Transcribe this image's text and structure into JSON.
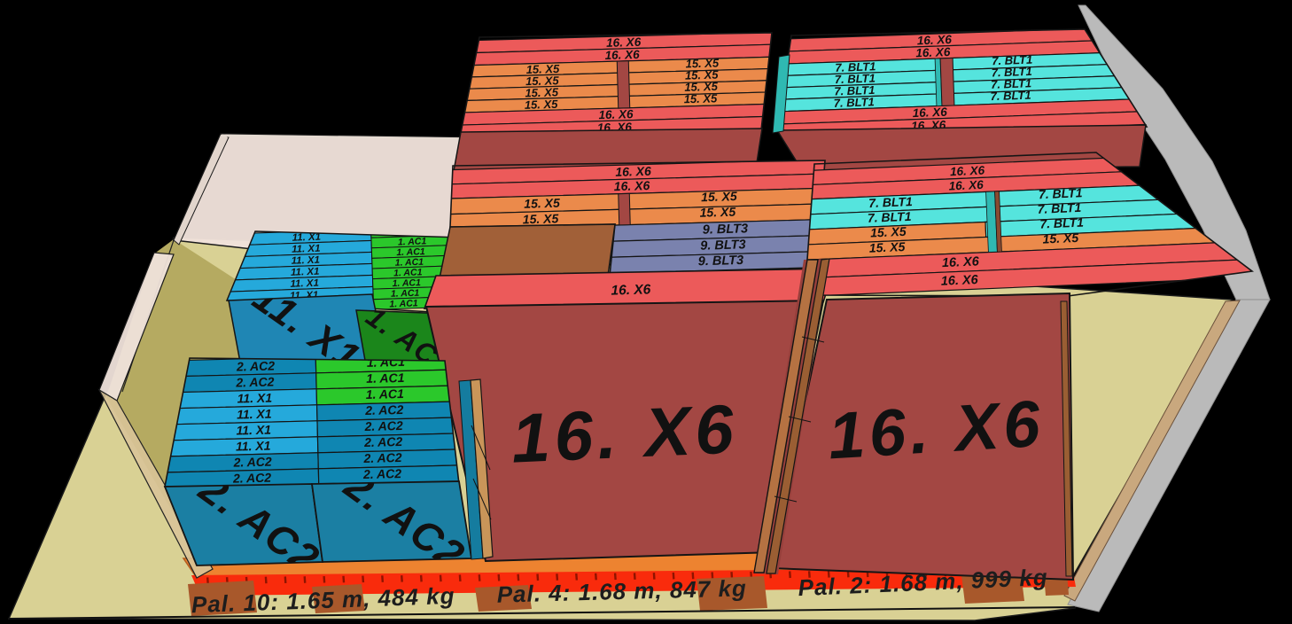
{
  "view": {
    "type": "3d-load-plan",
    "description_visible_objects": "truck bed with stacked labeled boxes on pallets"
  },
  "stacks": {
    "back_left": {
      "top_rows": [
        "16. X6",
        "16. X6",
        "15. X5",
        "15. X5",
        "15. X5",
        "15. X5",
        "16. X6",
        "16. X6"
      ]
    },
    "back_right": {
      "top_rows": [
        "16. X6",
        "16. X6",
        "7. BLT1",
        "7. BLT1",
        "7. BLT1",
        "7. BLT1",
        "16. X6",
        "16. X6"
      ]
    },
    "mid_left": {
      "top_rows": [
        "16. X6",
        "16. X6",
        "15. X5",
        "15. X5"
      ],
      "right_col_rows": [
        "9. BLT3",
        "9. BLT3",
        "9. BLT3"
      ],
      "box_top_row": "16. X6",
      "front_text": "16. X6"
    },
    "mid_right": {
      "left_col_rows": [
        "16. X6",
        "16. X6",
        "7. BLT1",
        "7. BLT1",
        "15. X5",
        "15. X5",
        "16. X6",
        "16. X6"
      ],
      "right_col_rows": [
        "7. BLT1",
        "7. BLT1",
        "7. BLT1",
        "15. X5"
      ],
      "front_text": "16. X6"
    },
    "left_back": {
      "left_col_rows": [
        "11. X1",
        "11. X1",
        "11. X1",
        "11. X1",
        "11. X1",
        "11. X1"
      ],
      "right_col_rows": [
        "1. AC1",
        "1. AC1",
        "1. AC1",
        "1. AC1",
        "1. AC1",
        "1. AC1",
        "1. AC1",
        "1. AC1"
      ],
      "front_left_text": "11. X1",
      "front_right_text": "1. AC1"
    },
    "left_front": {
      "left_col_rows": [
        "2. AC2",
        "2. AC2",
        "11. X1",
        "11. X1",
        "11. X1",
        "11. X1",
        "2. AC2",
        "2. AC2"
      ],
      "right_col_rows": [
        "1. AC1",
        "1. AC1",
        "1. AC1",
        "2. AC2",
        "2. AC2",
        "2. AC2",
        "2. AC2",
        "2. AC2"
      ],
      "front_left_text": "2. AC2",
      "front_right_text": "2. AC2"
    }
  },
  "pallets": {
    "pal10": {
      "label": "Pal. 10: 1.65 m, 484 kg"
    },
    "pal4": {
      "label": "Pal. 4: 1.68 m, 847 kg"
    },
    "pal2": {
      "label": "Pal. 2: 1.68 m, 999 kg"
    }
  },
  "colors": {
    "red_top": "#EC5A5A",
    "red_front": "#A34743",
    "orange_top": "#EB8A4B",
    "cyan_top": "#55E4DD",
    "slate_top": "#7A82AE",
    "blue_top": "#25A9DB",
    "teal_top": "#0F86B2",
    "green_top": "#2BC82B",
    "brown_box": "#A16038",
    "floor": "#D9D194",
    "floor_tinted": "#B5AA61",
    "strip_orange": "#ED8330",
    "ruler_red": "#F92B0C",
    "pallet_foot": "#A8582B",
    "wall_gray": "#BABABA",
    "ghost_wall": "#F0E2DB",
    "background": "#000000"
  }
}
